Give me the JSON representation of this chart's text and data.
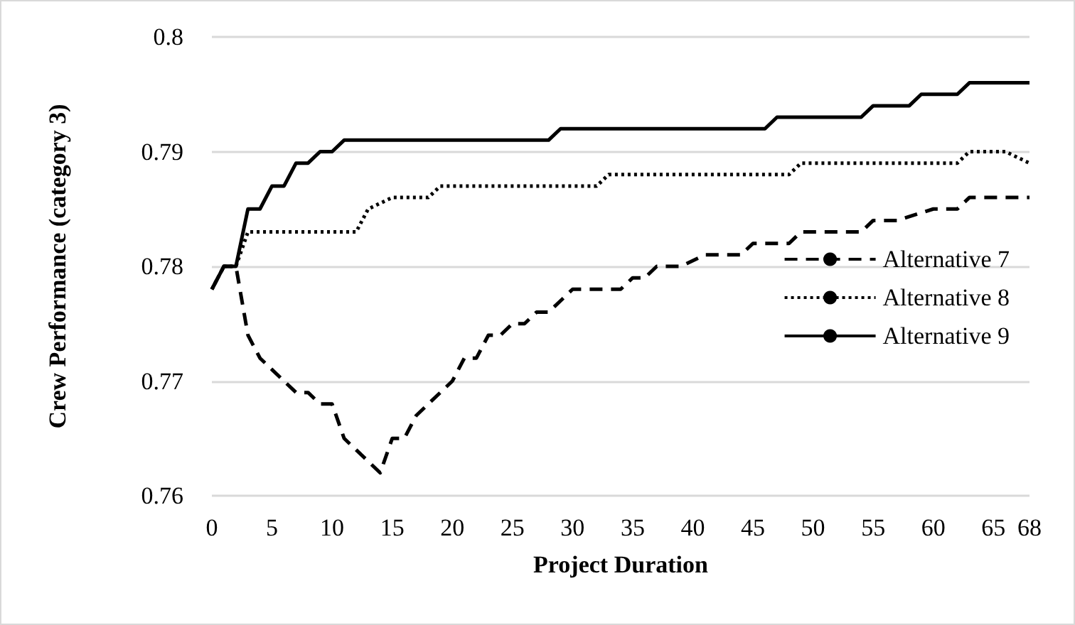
{
  "chart_data": {
    "type": "line",
    "xlabel": "Project Duration",
    "ylabel": "Crew Performance (category 3)",
    "xlim": [
      0,
      68
    ],
    "xticks": [
      0,
      5,
      10,
      15,
      20,
      25,
      30,
      35,
      40,
      45,
      50,
      55,
      60,
      65,
      68
    ],
    "ylim": [
      0.76,
      0.8
    ],
    "yticks": [
      0.76,
      0.77,
      0.78,
      0.79,
      0.8
    ],
    "grid": "y",
    "legend": "right",
    "marker": "none",
    "series": [
      {
        "name": "Alternative 7",
        "color": "#000000",
        "line_style": "dashed",
        "x": [
          0,
          1,
          2,
          3,
          4,
          5,
          6,
          7,
          8,
          9,
          10,
          11,
          12,
          13,
          14,
          15,
          16,
          17,
          18,
          19,
          20,
          21,
          22,
          23,
          24,
          25,
          26,
          27,
          28,
          29,
          30,
          34,
          35,
          36,
          37,
          39,
          41,
          44,
          45,
          46,
          48,
          49,
          50,
          54,
          55,
          57,
          60,
          62,
          63,
          68
        ],
        "values": [
          0.778,
          0.78,
          0.78,
          0.774,
          0.772,
          0.771,
          0.77,
          0.769,
          0.769,
          0.768,
          0.768,
          0.765,
          0.764,
          0.763,
          0.762,
          0.765,
          0.765,
          0.767,
          0.768,
          0.769,
          0.77,
          0.772,
          0.772,
          0.774,
          0.774,
          0.775,
          0.775,
          0.776,
          0.776,
          0.777,
          0.778,
          0.778,
          0.779,
          0.779,
          0.78,
          0.78,
          0.781,
          0.781,
          0.782,
          0.782,
          0.782,
          0.783,
          0.783,
          0.783,
          0.784,
          0.784,
          0.785,
          0.785,
          0.786,
          0.786
        ]
      },
      {
        "name": "Alternative 8",
        "color": "#000000",
        "line_style": "dotted",
        "x": [
          0,
          1,
          2,
          3,
          12,
          13,
          15,
          18,
          19,
          32,
          33,
          48,
          49,
          62,
          63,
          66,
          68
        ],
        "values": [
          0.778,
          0.78,
          0.78,
          0.783,
          0.783,
          0.785,
          0.786,
          0.786,
          0.787,
          0.787,
          0.788,
          0.788,
          0.789,
          0.789,
          0.79,
          0.79,
          0.789
        ]
      },
      {
        "name": "Alternative 9",
        "color": "#000000",
        "line_style": "solid",
        "x": [
          0,
          1,
          2,
          3,
          4,
          5,
          6,
          7,
          8,
          9,
          10,
          11,
          28,
          29,
          46,
          47,
          54,
          55,
          58,
          59,
          62,
          63,
          68
        ],
        "values": [
          0.778,
          0.78,
          0.78,
          0.785,
          0.785,
          0.787,
          0.787,
          0.789,
          0.789,
          0.79,
          0.79,
          0.791,
          0.791,
          0.792,
          0.792,
          0.793,
          0.793,
          0.794,
          0.794,
          0.795,
          0.795,
          0.796,
          0.796
        ]
      }
    ]
  }
}
